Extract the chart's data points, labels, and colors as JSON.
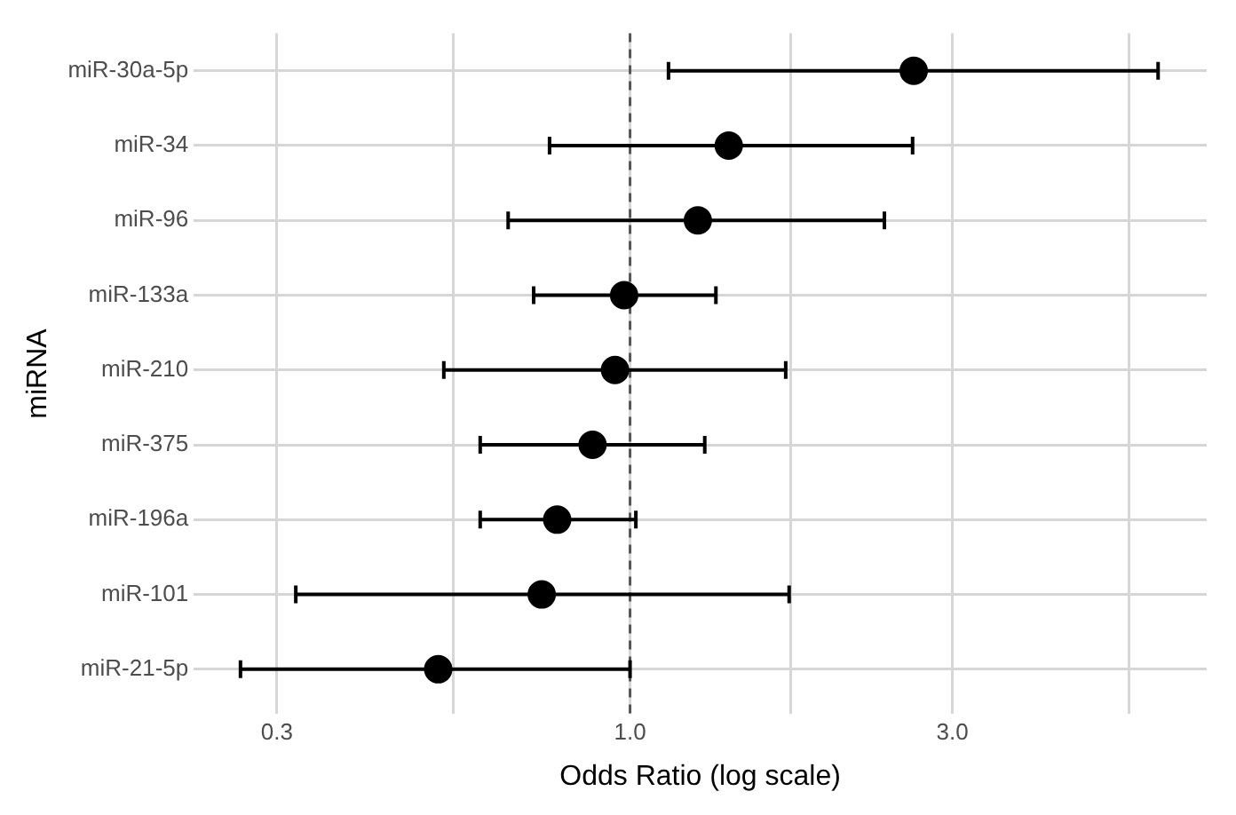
{
  "chart_data": {
    "type": "scatter",
    "orientation": "horizontal",
    "xlabel": "Odds Ratio (log scale)",
    "ylabel": "miRNA",
    "categories": [
      "miR-30a-5p",
      "miR-34",
      "miR-96",
      "miR-133a",
      "miR-210",
      "miR-375",
      "miR-196a",
      "miR-101",
      "miR-21-5p"
    ],
    "values": [
      2.63,
      1.4,
      1.26,
      0.98,
      0.95,
      0.88,
      0.78,
      0.74,
      0.52
    ],
    "errors": [
      [
        1.14,
        6.05
      ],
      [
        0.76,
        2.62
      ],
      [
        0.66,
        2.38
      ],
      [
        0.72,
        1.34
      ],
      [
        0.53,
        1.7
      ],
      [
        0.6,
        1.29
      ],
      [
        0.6,
        1.02
      ],
      [
        0.32,
        1.72
      ],
      [
        0.265,
        1.0
      ]
    ],
    "color": "#000000",
    "marker": "circle",
    "log": "x",
    "grid": true,
    "xlim": [
      0.226,
      7.14
    ],
    "xticks": [
      0.3,
      {
        "value": 0.548,
        "label": null
      },
      {
        "value": 1,
        "label": "1.0"
      },
      {
        "value": 1.73,
        "label": null
      },
      {
        "value": 3,
        "label": "3.0"
      },
      {
        "value": 5.48,
        "label": null
      }
    ],
    "ref_lines": [
      {
        "axis": "x",
        "value": 1,
        "line_style": "dashed",
        "color": "#555555"
      }
    ]
  }
}
